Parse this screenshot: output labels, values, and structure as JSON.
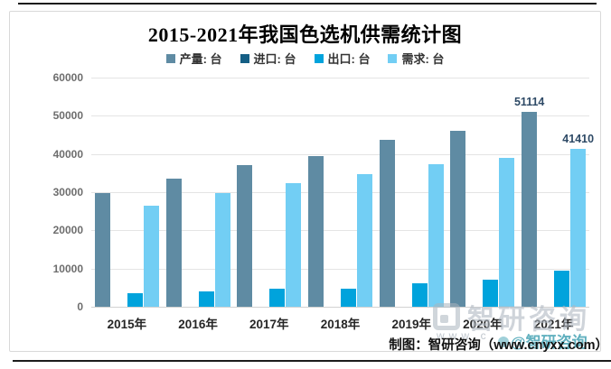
{
  "title": "2015-2021年我国色选机供需统计图",
  "source_caption": "制图：智研咨询（www.cnyxx.com）",
  "watermarks": {
    "brand": "智研咨询",
    "url_partial": "www.c",
    "social": "@智研咨询"
  },
  "colors": {
    "production": "#5f8ba3",
    "import": "#155f85",
    "export": "#00a3dc",
    "demand": "#72cef4",
    "grid": "#e4e4e4",
    "axis_text": "#6d6d6d",
    "point_label": "#2e4a66"
  },
  "chart_data": {
    "type": "bar",
    "title": "2015-2021年我国色选机供需统计图",
    "categories": [
      "2015年",
      "2016年",
      "2017年",
      "2018年",
      "2019年",
      "2020年",
      "2021年"
    ],
    "series": [
      {
        "name": "产量: 台",
        "color": "#5f8ba3",
        "values": [
          29800,
          33650,
          37000,
          39500,
          43600,
          46100,
          51114
        ]
      },
      {
        "name": "进口: 台",
        "color": "#155f85",
        "values": [
          0,
          0,
          0,
          0,
          0,
          0,
          0
        ]
      },
      {
        "name": "出口: 台",
        "color": "#00a3dc",
        "values": [
          3500,
          4000,
          4700,
          4800,
          6100,
          7100,
          9500
        ]
      },
      {
        "name": "需求: 台",
        "color": "#72cef4",
        "values": [
          26500,
          29800,
          32400,
          34800,
          37400,
          39000,
          41410
        ]
      }
    ],
    "point_labels": [
      {
        "series": 0,
        "category_index": 6,
        "text": "51114"
      },
      {
        "series": 3,
        "category_index": 6,
        "text": "41410"
      }
    ],
    "xlabel": "",
    "ylabel": "",
    "ylim": [
      0,
      60000
    ],
    "yticks": [
      0,
      10000,
      20000,
      30000,
      40000,
      50000,
      60000
    ],
    "grid": true,
    "legend_position": "top"
  }
}
